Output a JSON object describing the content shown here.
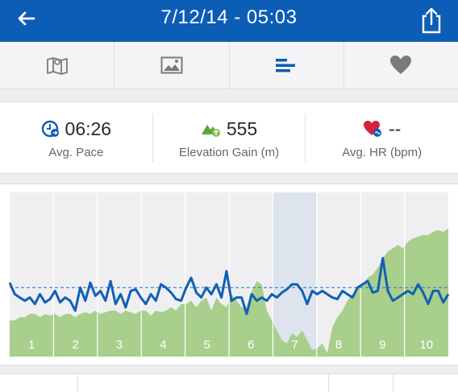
{
  "header": {
    "title": "7/12/14 - 05:03",
    "accent": "#0c5db5"
  },
  "tabs": [
    {
      "name": "map",
      "icon": "map-icon"
    },
    {
      "name": "photos",
      "icon": "image-icon"
    },
    {
      "name": "splits",
      "icon": "bar-chart-icon",
      "active": true
    },
    {
      "name": "heart",
      "icon": "heart-icon"
    }
  ],
  "stats": {
    "pace": {
      "value": "06:26",
      "label": "Avg. Pace",
      "icon": "pace-icon"
    },
    "elevation": {
      "value": "555",
      "label": "Elevation Gain (m)",
      "icon": "elevation-icon"
    },
    "hr": {
      "value": "--",
      "label": "Avg. HR (bpm)",
      "icon": "heart-rate-icon"
    }
  },
  "chart_data": {
    "type": "line",
    "categories": [
      "1",
      "2",
      "3",
      "4",
      "5",
      "6",
      "7",
      "8",
      "9",
      "10"
    ],
    "highlighted_split": "7",
    "pace_series": [
      0.55,
      0.62,
      0.64,
      0.66,
      0.64,
      0.68,
      0.62,
      0.67,
      0.65,
      0.6,
      0.67,
      0.64,
      0.66,
      0.72,
      0.58,
      0.66,
      0.55,
      0.63,
      0.6,
      0.66,
      0.54,
      0.68,
      0.62,
      0.7,
      0.6,
      0.59,
      0.64,
      0.68,
      0.62,
      0.66,
      0.56,
      0.58,
      0.61,
      0.65,
      0.66,
      0.58,
      0.52,
      0.61,
      0.64,
      0.58,
      0.62,
      0.56,
      0.64,
      0.48,
      0.66,
      0.64,
      0.64,
      0.74,
      0.62,
      0.66,
      0.64,
      0.66,
      0.62,
      0.64,
      0.61,
      0.59,
      0.56,
      0.56,
      0.6,
      0.68,
      0.6,
      0.62,
      0.6,
      0.62,
      0.64,
      0.65,
      0.6,
      0.62,
      0.64,
      0.58,
      0.56,
      0.54,
      0.61,
      0.6,
      0.4,
      0.6,
      0.66,
      0.64,
      0.62,
      0.6,
      0.62,
      0.56,
      0.61,
      0.68,
      0.6,
      0.6,
      0.67,
      0.62
    ],
    "elevation_series": [
      0.78,
      0.78,
      0.76,
      0.76,
      0.74,
      0.74,
      0.76,
      0.74,
      0.75,
      0.74,
      0.76,
      0.74,
      0.74,
      0.76,
      0.74,
      0.73,
      0.74,
      0.72,
      0.74,
      0.73,
      0.72,
      0.72,
      0.74,
      0.72,
      0.73,
      0.74,
      0.72,
      0.72,
      0.75,
      0.72,
      0.73,
      0.72,
      0.7,
      0.72,
      0.68,
      0.68,
      0.66,
      0.7,
      0.66,
      0.64,
      0.72,
      0.64,
      0.68,
      0.7,
      0.62,
      0.66,
      0.7,
      0.7,
      0.6,
      0.54,
      0.56,
      0.72,
      0.78,
      0.84,
      0.9,
      0.92,
      0.86,
      0.88,
      0.84,
      0.9,
      0.96,
      0.95,
      0.92,
      0.98,
      0.82,
      0.76,
      0.72,
      0.66,
      0.62,
      0.58,
      0.56,
      0.52,
      0.5,
      0.46,
      0.4,
      0.36,
      0.34,
      0.32,
      0.34,
      0.3,
      0.28,
      0.27,
      0.26,
      0.26,
      0.24,
      0.23,
      0.24,
      0.22
    ],
    "average_pace_line": 0.58,
    "colors": {
      "pace": "#1260b4",
      "elevation": "#a8cf8c",
      "average": "#3a7fcb",
      "highlight": "#dde4ee",
      "band": "#efeff2"
    }
  }
}
